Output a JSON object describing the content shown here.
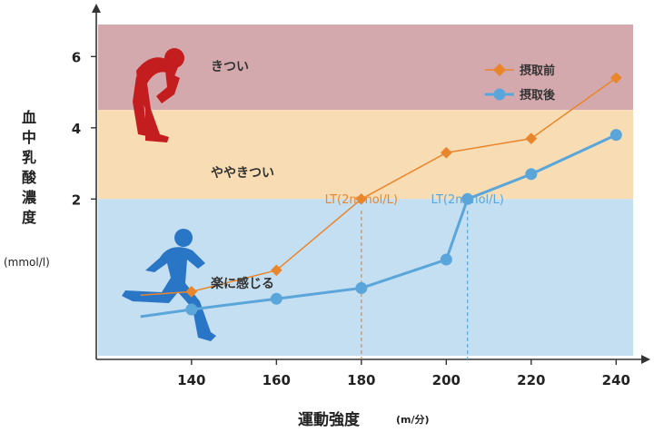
{
  "chart_data": {
    "type": "line",
    "xlabel": "運動強度",
    "xlabel_unit": "(m/分)",
    "ylabel": "血中乳酸濃度",
    "ylabel_unit": "(mmol/l)",
    "xlim": [
      118,
      244
    ],
    "ylim": [
      -2.4,
      6.9
    ],
    "x_ticks": [
      140,
      160,
      180,
      200,
      220,
      240
    ],
    "y_ticks": [
      2,
      4,
      6
    ],
    "grid": false,
    "legend_position": "top-right",
    "zones": [
      {
        "label": "きつい",
        "from": 4.5,
        "to": 6.9,
        "color": "#d4a9ad"
      },
      {
        "label": "ややきつい",
        "from": 2.0,
        "to": 4.5,
        "color": "#f8ddb4"
      },
      {
        "label": "楽に感じる",
        "from": -2.4,
        "to": 2.0,
        "color": "#c5dff2"
      }
    ],
    "series": [
      {
        "name": "摂取前",
        "color": "#e9862c",
        "marker": "diamond",
        "x": [
          128,
          140,
          160,
          180,
          200,
          220,
          240
        ],
        "y": [
          -0.7,
          -0.6,
          0.0,
          2.0,
          3.3,
          3.7,
          5.4
        ]
      },
      {
        "name": "摂取後",
        "color": "#5aa6da",
        "marker": "circle",
        "x": [
          128,
          140,
          160,
          180,
          200,
          205,
          220,
          240
        ],
        "y": [
          -1.3,
          -1.1,
          -0.8,
          -0.5,
          0.3,
          2.0,
          2.7,
          3.8
        ]
      }
    ],
    "annotations": [
      {
        "text": "LT(2mmol/L)",
        "x": 180,
        "color": "#e9862c"
      },
      {
        "text": "LT(2mmol/L)",
        "x": 205,
        "color": "#5aa6da"
      }
    ]
  }
}
